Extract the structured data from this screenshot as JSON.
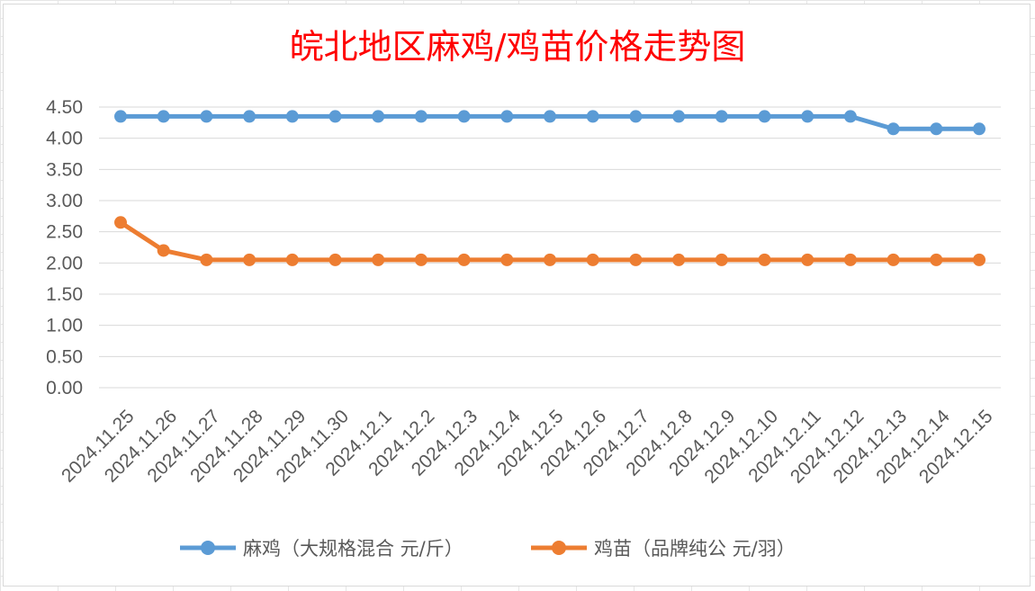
{
  "chart_data": {
    "type": "line",
    "title": "皖北地区麻鸡/鸡苗价格走势图",
    "xlabel": "",
    "ylabel": "",
    "categories": [
      "2024.11.25",
      "2024.11.26",
      "2024.11.27",
      "2024.11.28",
      "2024.11.29",
      "2024.11.30",
      "2024.12.1",
      "2024.12.2",
      "2024.12.3",
      "2024.12.4",
      "2024.12.5",
      "2024.12.6",
      "2024.12.7",
      "2024.12.8",
      "2024.12.9",
      "2024.12.10",
      "2024.12.11",
      "2024.12.12",
      "2024.12.13",
      "2024.12.14",
      "2024.12.15"
    ],
    "y_ticks": [
      "0.00",
      "0.50",
      "1.00",
      "1.50",
      "2.00",
      "2.50",
      "3.00",
      "3.50",
      "4.00",
      "4.50"
    ],
    "ylim": [
      0,
      4.5
    ],
    "grid": true,
    "legend_position": "bottom",
    "series": [
      {
        "name": "麻鸡（大规格混合 元/斤）",
        "color": "#5b9bd5",
        "values": [
          4.35,
          4.35,
          4.35,
          4.35,
          4.35,
          4.35,
          4.35,
          4.35,
          4.35,
          4.35,
          4.35,
          4.35,
          4.35,
          4.35,
          4.35,
          4.35,
          4.35,
          4.35,
          4.15,
          4.15,
          4.15
        ]
      },
      {
        "name": "鸡苗（品牌纯公 元/羽）",
        "color": "#ed7d31",
        "values": [
          2.65,
          2.2,
          2.05,
          2.05,
          2.05,
          2.05,
          2.05,
          2.05,
          2.05,
          2.05,
          2.05,
          2.05,
          2.05,
          2.05,
          2.05,
          2.05,
          2.05,
          2.05,
          2.05,
          2.05,
          2.05
        ]
      }
    ]
  }
}
